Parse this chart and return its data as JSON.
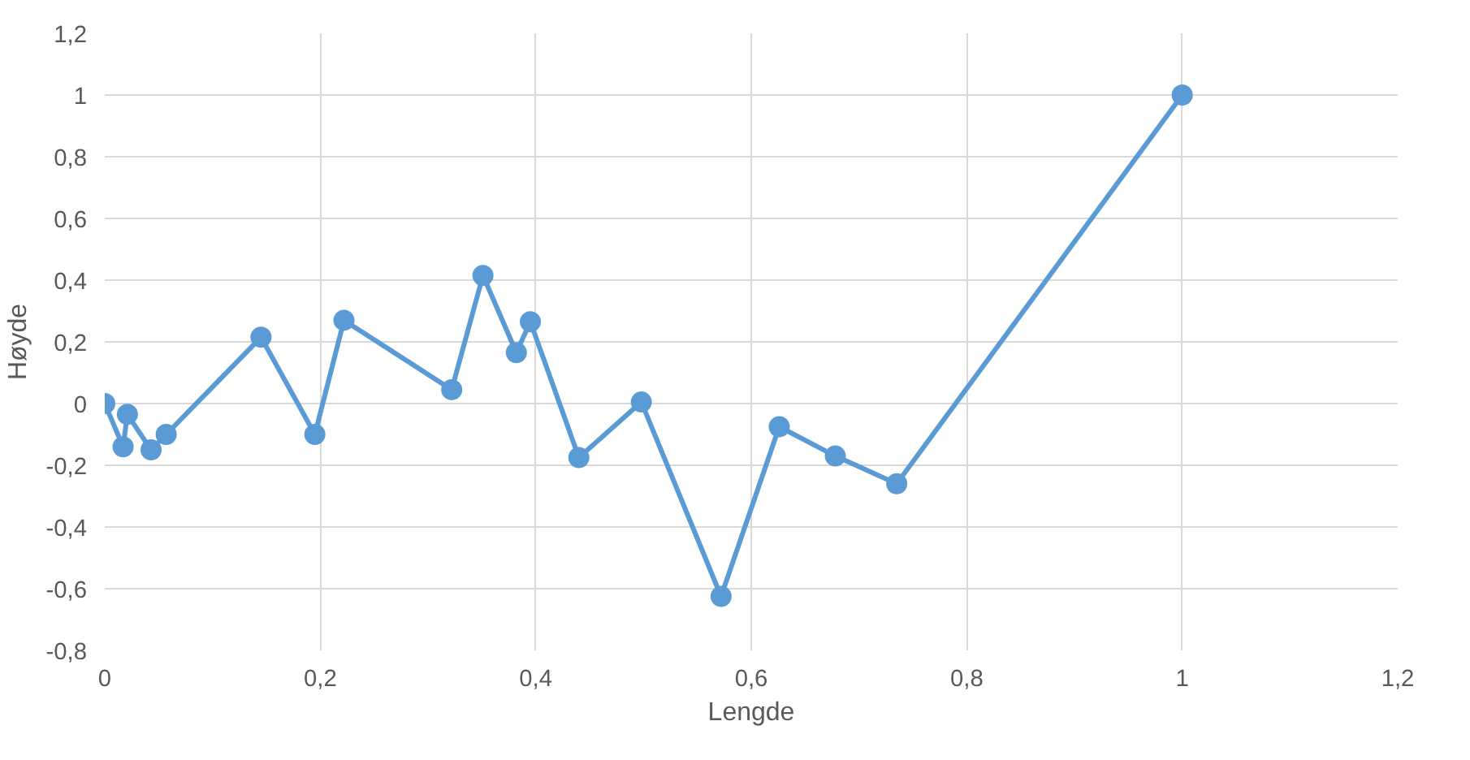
{
  "chart_data": {
    "type": "line",
    "xlabel": "Lengde",
    "ylabel": "Høyde",
    "xlim": [
      0,
      1.2
    ],
    "ylim": [
      -0.8,
      1.2
    ],
    "xticks": [
      0,
      {
        "value": 0.2,
        "label": "0,2"
      },
      {
        "value": 0.4,
        "label": "0,4"
      },
      {
        "value": 0.6,
        "label": "0,6"
      },
      {
        "value": 0.8,
        "label": "0,8"
      },
      1,
      {
        "value": 1.2,
        "label": "1,2"
      }
    ],
    "yticks": [
      {
        "value": -0.8,
        "label": "-0,8"
      },
      {
        "value": -0.6,
        "label": "-0,6"
      },
      {
        "value": -0.4,
        "label": "-0,4"
      },
      {
        "value": -0.2,
        "label": "-0,2"
      },
      0,
      {
        "value": 0.2,
        "label": "0,2"
      },
      {
        "value": 0.4,
        "label": "0,4"
      },
      {
        "value": 0.6,
        "label": "0,6"
      },
      {
        "value": 0.8,
        "label": "0,8"
      },
      1,
      {
        "value": 1.2,
        "label": "1,2"
      }
    ],
    "grid": true,
    "marker": "circle",
    "line_style": "solid",
    "series": [
      {
        "color": "#5b9bd5",
        "x": [
          0,
          0.017,
          0.021,
          0.043,
          0.057,
          0.145,
          0.195,
          0.222,
          0.322,
          0.351,
          0.382,
          0.395,
          0.44,
          0.498,
          0.572,
          0.626,
          0.678,
          0.735,
          1.0
        ],
        "values": [
          0,
          -0.14,
          -0.035,
          -0.15,
          -0.1,
          0.215,
          -0.1,
          0.27,
          0.045,
          0.415,
          0.165,
          0.265,
          -0.175,
          0.005,
          -0.625,
          -0.075,
          -0.17,
          -0.26,
          1.0
        ]
      }
    ]
  }
}
